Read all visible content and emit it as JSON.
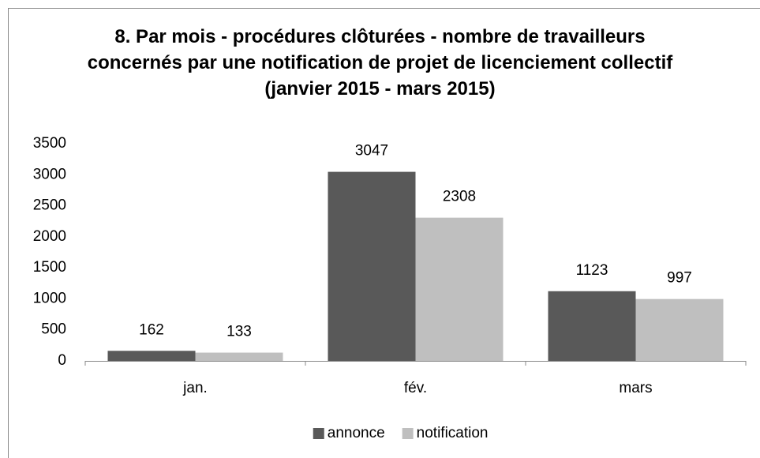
{
  "chart_data": {
    "type": "bar",
    "title": "8. Par mois - procédures clôturées - nombre de travailleurs concernés par une notification de projet de licenciement collectif (janvier 2015 - mars 2015)",
    "categories": [
      "jan.",
      "fév.",
      "mars"
    ],
    "series": [
      {
        "name": "annonce",
        "color": "#595959",
        "values": [
          162,
          3047,
          1123
        ]
      },
      {
        "name": "notification",
        "color": "#bfbfbf",
        "values": [
          133,
          2308,
          997
        ]
      }
    ],
    "ylim": [
      0,
      3500
    ],
    "yticks": [
      0,
      500,
      1000,
      1500,
      2000,
      2500,
      3000,
      3500
    ],
    "grid": false,
    "legend": "bottom"
  }
}
